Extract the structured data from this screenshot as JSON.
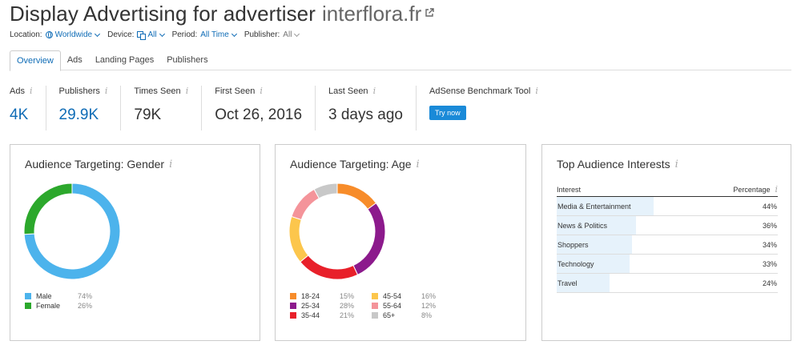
{
  "header": {
    "title": "Display Advertising for advertiser",
    "domain": "interflora.fr"
  },
  "filters": {
    "location_label": "Location:",
    "location_value": "Worldwide",
    "device_label": "Device:",
    "device_value": "All",
    "period_label": "Period:",
    "period_value": "All Time",
    "publisher_label": "Publisher:",
    "publisher_value": "All"
  },
  "tabs": [
    {
      "label": "Overview",
      "active": true
    },
    {
      "label": "Ads",
      "active": false
    },
    {
      "label": "Landing Pages",
      "active": false
    },
    {
      "label": "Publishers",
      "active": false
    }
  ],
  "stats": {
    "ads": {
      "label": "Ads",
      "value": "4K"
    },
    "publishers": {
      "label": "Publishers",
      "value": "29.9K"
    },
    "times_seen": {
      "label": "Times Seen",
      "value": "79K"
    },
    "first_seen": {
      "label": "First Seen",
      "value": "Oct 26, 2016"
    },
    "last_seen": {
      "label": "Last Seen",
      "value": "3 days ago"
    },
    "adsense": {
      "label": "AdSense Benchmark Tool",
      "button": "Try now"
    }
  },
  "gender": {
    "title": "Audience Targeting: Gender",
    "items": [
      {
        "name": "Male",
        "label": "74%",
        "value": 74,
        "color": "#4cb3ec"
      },
      {
        "name": "Female",
        "label": "26%",
        "value": 26,
        "color": "#2ca82c"
      }
    ]
  },
  "age": {
    "title": "Audience Targeting: Age",
    "items": [
      {
        "name": "18-24",
        "label": "15%",
        "value": 15,
        "color": "#f78c2a"
      },
      {
        "name": "25-34",
        "label": "28%",
        "value": 28,
        "color": "#8c1a8c"
      },
      {
        "name": "35-44",
        "label": "21%",
        "value": 21,
        "color": "#e8202a"
      },
      {
        "name": "45-54",
        "label": "16%",
        "value": 16,
        "color": "#fcc64c"
      },
      {
        "name": "55-64",
        "label": "12%",
        "value": 12,
        "color": "#f4949a"
      },
      {
        "name": "65+",
        "label": "8%",
        "value": 8,
        "color": "#c8c8c8"
      }
    ]
  },
  "interests": {
    "title": "Top Audience Interests",
    "col_interest": "Interest",
    "col_percentage": "Percentage",
    "rows": [
      {
        "name": "Media & Entertainment",
        "label": "44%",
        "value": 44
      },
      {
        "name": "News & Politics",
        "label": "36%",
        "value": 36
      },
      {
        "name": "Shoppers",
        "label": "34%",
        "value": 34
      },
      {
        "name": "Technology",
        "label": "33%",
        "value": 33
      },
      {
        "name": "Travel",
        "label": "24%",
        "value": 24
      }
    ]
  }
}
